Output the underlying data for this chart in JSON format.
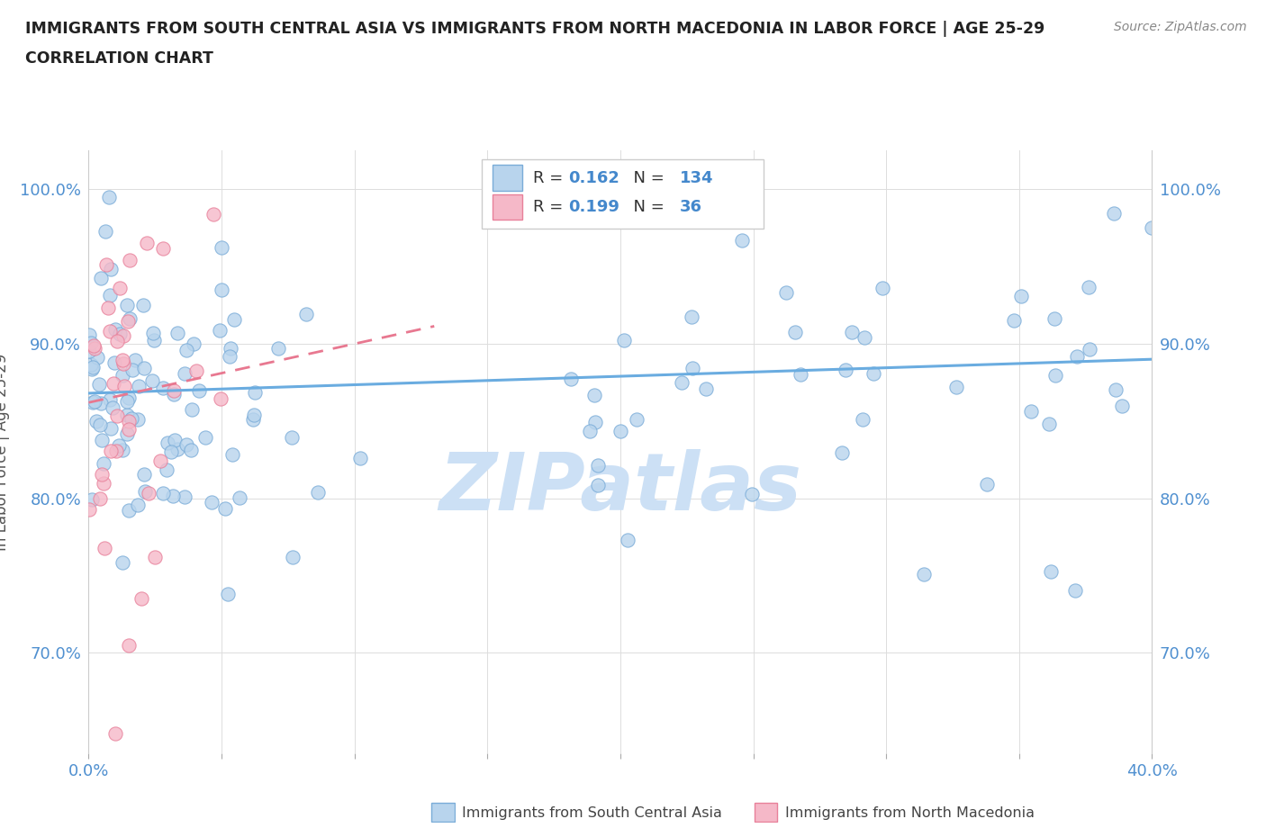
{
  "title_line1": "IMMIGRANTS FROM SOUTH CENTRAL ASIA VS IMMIGRANTS FROM NORTH MACEDONIA IN LABOR FORCE | AGE 25-29",
  "title_line2": "CORRELATION CHART",
  "source_text": "Source: ZipAtlas.com",
  "ylabel": "In Labor Force | Age 25-29",
  "xmin": 0.0,
  "xmax": 0.4,
  "ymin": 0.635,
  "ymax": 1.025,
  "series1_label": "Immigrants from South Central Asia",
  "series2_label": "Immigrants from North Macedonia",
  "series1_face_color": "#b8d4ed",
  "series2_face_color": "#f5b8c8",
  "series1_edge_color": "#7aacd8",
  "series2_edge_color": "#e8809a",
  "trendline1_color": "#6aace0",
  "trendline2_color": "#e87890",
  "R1": 0.162,
  "N1": 134,
  "R2": 0.199,
  "N2": 36,
  "yticks": [
    0.7,
    0.8,
    0.9,
    1.0
  ],
  "ytick_labels": [
    "70.0%",
    "80.0%",
    "90.0%",
    "100.0%"
  ],
  "bg_color": "#ffffff",
  "grid_color": "#dddddd",
  "title_color": "#222222",
  "axis_tick_color": "#5090d0",
  "watermark_color": "#cce0f5",
  "legend_text_dark": "#333333",
  "legend_text_blue": "#4488cc"
}
